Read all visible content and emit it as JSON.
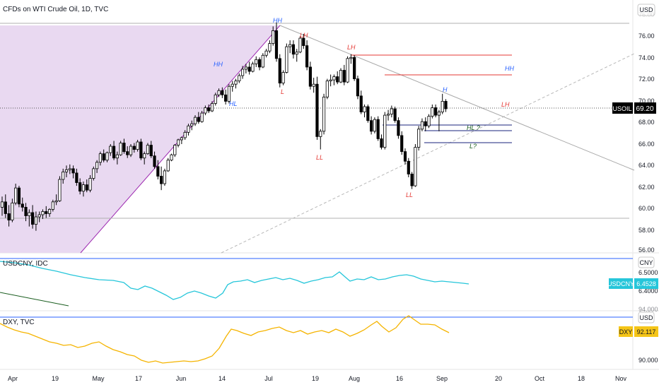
{
  "header": {
    "title": "CFDs on WTI Crude Oil, 1D, TVC"
  },
  "main_pane": {
    "currency_label": "USD",
    "y_ticks": [
      "76.00",
      "74.00",
      "72.00",
      "70.00",
      "68.00",
      "66.00",
      "64.00",
      "62.00",
      "60.00",
      "58.00",
      "56.00"
    ],
    "partial_tick": "76.00",
    "price_badge": {
      "symbol": "USOIL",
      "value": "69.20",
      "color": "#000000"
    },
    "pattern_labels": [
      {
        "text": "HH",
        "color": "#2962ff"
      },
      {
        "text": "HL",
        "color": "#2962ff"
      },
      {
        "text": "HH",
        "color": "#2962ff"
      },
      {
        "text": "L",
        "color": "#e53935"
      },
      {
        "text": "LH",
        "color": "#e53935"
      },
      {
        "text": "LL",
        "color": "#e53935"
      },
      {
        "text": "LH",
        "color": "#e53935"
      },
      {
        "text": "LL",
        "color": "#e53935"
      },
      {
        "text": "H",
        "color": "#2962ff"
      },
      {
        "text": "HH",
        "color": "#2962ff"
      },
      {
        "text": "LH",
        "color": "#e53935"
      },
      {
        "text": "HL ?",
        "color": "#1b5e20"
      },
      {
        "text": "L?",
        "color": "#1b5e20"
      }
    ]
  },
  "usdcny_pane": {
    "title": "USDCNY, IDC",
    "currency_label": "CNY",
    "y_ticks": [
      "6.5000",
      "6.4000"
    ],
    "badge": {
      "symbol": "USDCNY",
      "value": "6.4528",
      "color": "#26c6da"
    }
  },
  "dxy_pane": {
    "title": "DXY, TVC",
    "currency_label": "USD",
    "y_ticks": [
      "94.000",
      "90.000"
    ],
    "badge": {
      "symbol": "DXY",
      "value": "92.117",
      "color": "#f5c518"
    }
  },
  "x_axis": {
    "labels": [
      "Apr",
      "19",
      "May",
      "17",
      "Jun",
      "14",
      "Jul",
      "19",
      "Aug",
      "16",
      "Sep",
      "20",
      "Oct",
      "18",
      "Nov"
    ]
  },
  "chart_data": {
    "type": "candlestick",
    "price_range": [
      55.8,
      77.8
    ],
    "candles": [
      [
        60.0,
        61.0,
        59.2,
        60.5
      ],
      [
        60.5,
        61.2,
        59.0,
        59.4
      ],
      [
        59.4,
        60.2,
        58.2,
        58.8
      ],
      [
        58.8,
        60.8,
        58.6,
        60.4
      ],
      [
        60.4,
        62.2,
        60.2,
        61.8
      ],
      [
        61.8,
        62.0,
        60.0,
        60.3
      ],
      [
        60.3,
        60.9,
        59.6,
        60.0
      ],
      [
        60.0,
        60.4,
        58.7,
        59.2
      ],
      [
        59.2,
        59.8,
        58.2,
        59.5
      ],
      [
        59.5,
        60.2,
        58.0,
        58.4
      ],
      [
        58.4,
        59.6,
        57.8,
        59.1
      ],
      [
        59.1,
        59.6,
        58.6,
        59.3
      ],
      [
        59.3,
        59.8,
        58.9,
        59.6
      ],
      [
        59.6,
        60.1,
        59.0,
        59.4
      ],
      [
        59.4,
        59.9,
        59.1,
        59.8
      ],
      [
        59.8,
        60.7,
        59.6,
        60.5
      ],
      [
        60.5,
        61.2,
        60.2,
        60.6
      ],
      [
        60.6,
        62.9,
        60.5,
        62.6
      ],
      [
        62.6,
        63.6,
        62.2,
        63.3
      ],
      [
        63.3,
        63.9,
        62.8,
        63.5
      ],
      [
        63.5,
        64.0,
        63.1,
        63.6
      ],
      [
        63.6,
        63.9,
        62.7,
        63.2
      ],
      [
        63.2,
        63.6,
        62.0,
        62.3
      ],
      [
        62.3,
        62.7,
        61.2,
        61.5
      ],
      [
        61.5,
        62.4,
        61.0,
        62.1
      ],
      [
        62.1,
        62.6,
        61.4,
        61.6
      ],
      [
        61.6,
        63.0,
        61.4,
        62.7
      ],
      [
        62.7,
        63.8,
        62.5,
        63.6
      ],
      [
        63.6,
        64.4,
        63.2,
        64.2
      ],
      [
        64.2,
        65.2,
        63.9,
        65.0
      ],
      [
        65.0,
        65.4,
        64.2,
        64.4
      ],
      [
        64.4,
        65.2,
        64.2,
        65.1
      ],
      [
        65.1,
        65.9,
        64.8,
        65.7
      ],
      [
        65.7,
        66.2,
        64.4,
        64.6
      ],
      [
        64.6,
        65.2,
        64.0,
        64.9
      ],
      [
        64.9,
        66.2,
        64.8,
        66.0
      ],
      [
        66.0,
        66.4,
        65.0,
        65.2
      ],
      [
        65.2,
        65.7,
        64.6,
        64.9
      ],
      [
        64.9,
        65.9,
        64.7,
        65.7
      ],
      [
        65.7,
        66.0,
        65.1,
        65.4
      ],
      [
        65.4,
        66.3,
        65.2,
        66.1
      ],
      [
        66.1,
        66.4,
        64.4,
        64.6
      ],
      [
        64.6,
        65.2,
        64.0,
        65.0
      ],
      [
        65.0,
        66.0,
        64.9,
        65.8
      ],
      [
        65.8,
        66.2,
        64.6,
        64.8
      ],
      [
        64.8,
        65.2,
        63.6,
        63.8
      ],
      [
        63.8,
        64.4,
        62.6,
        62.9
      ],
      [
        62.9,
        63.8,
        61.6,
        62.2
      ],
      [
        62.2,
        63.6,
        62.0,
        63.4
      ],
      [
        63.4,
        64.6,
        63.3,
        64.4
      ],
      [
        64.4,
        65.0,
        64.3,
        64.9
      ],
      [
        64.9,
        65.9,
        64.7,
        65.8
      ],
      [
        65.8,
        66.4,
        65.6,
        66.3
      ],
      [
        66.3,
        66.6,
        65.9,
        66.5
      ],
      [
        66.5,
        67.2,
        66.3,
        67.0
      ],
      [
        67.0,
        67.8,
        66.7,
        67.6
      ],
      [
        67.6,
        68.1,
        67.2,
        67.8
      ],
      [
        67.8,
        68.6,
        67.6,
        68.4
      ],
      [
        68.4,
        68.9,
        67.8,
        68.0
      ],
      [
        68.0,
        69.0,
        67.9,
        68.8
      ],
      [
        68.8,
        69.5,
        68.6,
        69.3
      ],
      [
        69.3,
        69.6,
        68.8,
        69.0
      ],
      [
        69.0,
        69.9,
        68.9,
        69.7
      ],
      [
        69.7,
        70.7,
        69.5,
        70.5
      ],
      [
        70.5,
        71.1,
        70.3,
        70.9
      ],
      [
        70.9,
        71.2,
        70.2,
        70.5
      ],
      [
        70.5,
        71.0,
        69.6,
        69.9
      ],
      [
        69.9,
        71.5,
        69.7,
        71.3
      ],
      [
        71.3,
        71.8,
        70.8,
        71.5
      ],
      [
        71.5,
        72.0,
        71.1,
        71.8
      ],
      [
        71.8,
        72.5,
        71.6,
        72.3
      ],
      [
        72.3,
        73.2,
        72.0,
        72.9
      ],
      [
        72.9,
        73.4,
        72.5,
        73.1
      ],
      [
        73.1,
        73.6,
        72.4,
        72.7
      ],
      [
        72.7,
        73.6,
        72.6,
        73.4
      ],
      [
        73.4,
        74.1,
        73.1,
        73.8
      ],
      [
        73.8,
        74.0,
        72.8,
        73.1
      ],
      [
        73.1,
        74.4,
        73.0,
        74.2
      ],
      [
        74.2,
        74.8,
        74.0,
        74.6
      ],
      [
        74.6,
        75.6,
        74.4,
        75.3
      ],
      [
        75.3,
        76.9,
        75.1,
        76.5
      ],
      [
        76.5,
        77.3,
        73.6,
        73.9
      ],
      [
        73.9,
        74.3,
        71.2,
        71.6
      ],
      [
        71.6,
        72.8,
        71.4,
        72.6
      ],
      [
        72.6,
        75.3,
        72.5,
        75.0
      ],
      [
        75.0,
        75.6,
        74.4,
        75.2
      ],
      [
        75.2,
        75.6,
        73.9,
        74.3
      ],
      [
        74.3,
        74.8,
        73.6,
        74.5
      ],
      [
        74.5,
        76.0,
        74.4,
        75.8
      ],
      [
        75.8,
        76.2,
        74.8,
        75.1
      ],
      [
        75.1,
        75.6,
        72.8,
        73.1
      ],
      [
        73.1,
        73.6,
        71.0,
        71.3
      ],
      [
        71.3,
        72.1,
        70.7,
        71.5
      ],
      [
        71.5,
        72.2,
        66.3,
        66.6
      ],
      [
        66.6,
        67.3,
        65.4,
        67.1
      ],
      [
        67.1,
        70.6,
        66.8,
        70.3
      ],
      [
        70.3,
        72.0,
        70.1,
        71.8
      ],
      [
        71.8,
        72.4,
        71.3,
        71.9
      ],
      [
        71.9,
        72.4,
        71.4,
        72.2
      ],
      [
        72.2,
        72.7,
        71.5,
        71.7
      ],
      [
        71.7,
        73.0,
        71.6,
        72.8
      ],
      [
        72.8,
        73.3,
        71.4,
        71.7
      ],
      [
        71.7,
        74.1,
        71.6,
        73.9
      ],
      [
        73.9,
        74.3,
        73.4,
        74.0
      ],
      [
        74.0,
        74.2,
        71.8,
        72.0
      ],
      [
        72.0,
        72.3,
        70.1,
        70.4
      ],
      [
        70.4,
        70.9,
        68.7,
        68.9
      ],
      [
        68.9,
        69.6,
        68.4,
        69.4
      ],
      [
        69.4,
        69.6,
        67.9,
        68.1
      ],
      [
        68.1,
        68.5,
        66.8,
        67.1
      ],
      [
        67.1,
        68.4,
        66.9,
        68.2
      ],
      [
        68.2,
        68.5,
        66.2,
        66.4
      ],
      [
        66.4,
        66.8,
        65.4,
        65.6
      ],
      [
        65.6,
        68.9,
        65.4,
        68.6
      ],
      [
        68.6,
        69.1,
        68.1,
        68.7
      ],
      [
        68.7,
        69.5,
        68.4,
        69.2
      ],
      [
        69.2,
        69.4,
        67.9,
        68.1
      ],
      [
        68.1,
        68.4,
        66.4,
        66.7
      ],
      [
        66.7,
        67.1,
        64.9,
        65.2
      ],
      [
        65.2,
        65.5,
        64.0,
        64.3
      ],
      [
        64.3,
        64.6,
        62.8,
        63.1
      ],
      [
        63.1,
        63.3,
        61.7,
        62.0
      ],
      [
        62.0,
        65.9,
        61.9,
        65.6
      ],
      [
        65.6,
        67.6,
        65.3,
        67.3
      ],
      [
        67.3,
        68.3,
        67.1,
        68.0
      ],
      [
        68.0,
        68.4,
        67.1,
        67.6
      ],
      [
        67.6,
        68.7,
        67.4,
        68.5
      ],
      [
        68.5,
        69.6,
        68.3,
        69.3
      ],
      [
        69.3,
        69.6,
        68.4,
        68.6
      ],
      [
        68.6,
        69.1,
        67.1,
        68.9
      ],
      [
        68.9,
        70.6,
        68.7,
        69.9
      ],
      [
        69.9,
        70.1,
        68.9,
        69.2
      ]
    ]
  }
}
